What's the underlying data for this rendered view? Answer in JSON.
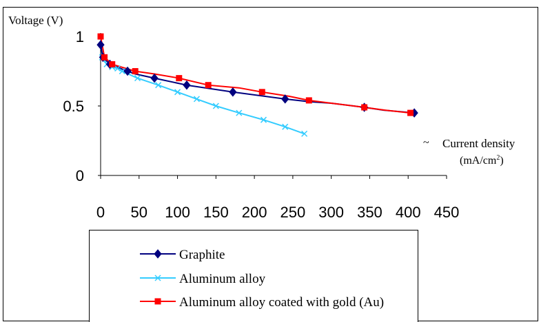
{
  "chart_data": {
    "type": "line",
    "ylabel": "Voltage (V)",
    "xlabel_line1": "Current density",
    "xlabel_line2_prefix": "(mA/cm",
    "xlabel_line2_sup": "2",
    "xlabel_line2_suffix": ")",
    "xlim": [
      0,
      450
    ],
    "ylim": [
      0,
      1
    ],
    "x_ticks": [
      0,
      50,
      100,
      150,
      200,
      250,
      300,
      350,
      400,
      450
    ],
    "y_ticks": [
      {
        "value": 0,
        "label": "0"
      },
      {
        "value": 0.5,
        "label": "0.5"
      },
      {
        "value": 1,
        "label": "1"
      }
    ],
    "grid": false,
    "legend_position": "bottom",
    "series": [
      {
        "name": "Graphite",
        "color": "#00007f",
        "marker": "diamond",
        "x": [
          0,
          3,
          12,
          35,
          45,
          70,
          112,
          172,
          240,
          272,
          300,
          343,
          368,
          408
        ],
        "y": [
          0.94,
          0.85,
          0.8,
          0.75,
          0.73,
          0.7,
          0.65,
          0.6,
          0.55,
          0.53,
          0.52,
          0.49,
          0.47,
          0.45
        ],
        "marker_x": [
          0,
          3,
          12,
          35,
          70,
          112,
          172,
          240,
          343,
          408
        ],
        "marker_y": [
          0.94,
          0.85,
          0.8,
          0.75,
          0.7,
          0.65,
          0.6,
          0.55,
          0.49,
          0.45
        ]
      },
      {
        "name": "Aluminum alloy",
        "color": "#33ccff",
        "marker": "x",
        "x": [
          0,
          2,
          8,
          15,
          22,
          28,
          48,
          75,
          100,
          125,
          150,
          180,
          212,
          240,
          265
        ],
        "y": [
          1.0,
          0.85,
          0.8,
          0.78,
          0.77,
          0.75,
          0.7,
          0.65,
          0.6,
          0.55,
          0.5,
          0.45,
          0.4,
          0.35,
          0.3
        ],
        "marker_x": [
          0,
          2,
          8,
          15,
          22,
          28,
          48,
          75,
          100,
          125,
          150,
          180,
          212,
          240,
          265
        ],
        "marker_y": [
          1.0,
          0.85,
          0.8,
          0.78,
          0.77,
          0.75,
          0.7,
          0.65,
          0.6,
          0.55,
          0.5,
          0.45,
          0.4,
          0.35,
          0.3
        ]
      },
      {
        "name": "Aluminum alloy coated with gold (Au)",
        "color": "#ff0000",
        "marker": "square",
        "x": [
          0,
          5,
          15,
          45,
          70,
          102,
          140,
          180,
          210,
          245,
          271,
          300,
          343,
          370,
          403
        ],
        "y": [
          1.0,
          0.85,
          0.8,
          0.75,
          0.73,
          0.7,
          0.65,
          0.63,
          0.6,
          0.57,
          0.54,
          0.52,
          0.49,
          0.47,
          0.45
        ],
        "marker_x": [
          0,
          5,
          15,
          45,
          102,
          140,
          210,
          271,
          343,
          403
        ],
        "marker_y": [
          1.0,
          0.85,
          0.8,
          0.75,
          0.7,
          0.65,
          0.6,
          0.54,
          0.49,
          0.45
        ]
      }
    ]
  }
}
